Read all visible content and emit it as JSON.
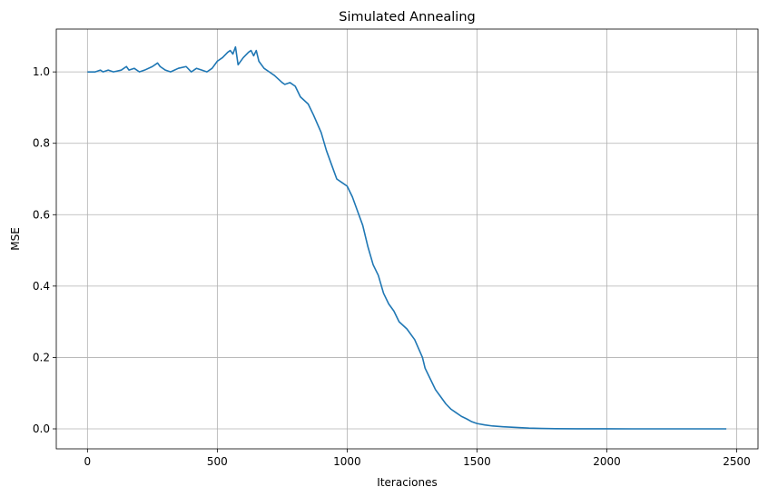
{
  "chart_data": {
    "type": "line",
    "title": "Simulated Annealing",
    "xlabel": "Iteraciones",
    "ylabel": "MSE",
    "xlim": [
      -120,
      2582
    ],
    "ylim": [
      -0.056,
      1.12
    ],
    "grid": true,
    "line_color": "#1f77b4",
    "grid_color": "#b0b0b0",
    "xticks": [
      0,
      500,
      1000,
      1500,
      2000,
      2500
    ],
    "xtick_labels": [
      "0",
      "500",
      "1000",
      "1500",
      "2000",
      "2500"
    ],
    "yticks": [
      0.0,
      0.2,
      0.4,
      0.6,
      0.8,
      1.0
    ],
    "ytick_labels": [
      "0.0",
      "0.2",
      "0.4",
      "0.6",
      "0.8",
      "1.0"
    ],
    "series": [
      {
        "x": [
          0,
          30,
          50,
          60,
          80,
          100,
          130,
          150,
          160,
          180,
          200,
          220,
          250,
          270,
          280,
          300,
          320,
          350,
          380,
          400,
          420,
          440,
          460,
          480,
          500,
          520,
          540,
          550,
          560,
          570,
          580,
          600,
          620,
          630,
          640,
          650,
          660,
          680,
          700,
          720,
          750,
          760,
          780,
          800,
          820,
          850,
          870,
          900,
          920,
          940,
          960,
          980,
          1000,
          1020,
          1040,
          1060,
          1080,
          1100,
          1120,
          1140,
          1160,
          1180,
          1200,
          1230,
          1260,
          1290,
          1300,
          1320,
          1340,
          1360,
          1380,
          1400,
          1420,
          1440,
          1460,
          1480,
          1500,
          1530,
          1560,
          1600,
          1650,
          1700,
          1750,
          1800,
          1900,
          2000,
          2100,
          2200,
          2300,
          2400,
          2460
        ],
        "y": [
          1.0,
          1.0,
          1.005,
          1.0,
          1.005,
          1.0,
          1.005,
          1.015,
          1.005,
          1.01,
          1.0,
          1.005,
          1.015,
          1.025,
          1.015,
          1.005,
          1.0,
          1.01,
          1.015,
          1.0,
          1.01,
          1.005,
          1.0,
          1.01,
          1.03,
          1.04,
          1.055,
          1.06,
          1.05,
          1.07,
          1.02,
          1.04,
          1.055,
          1.06,
          1.045,
          1.06,
          1.03,
          1.01,
          1.0,
          0.99,
          0.97,
          0.965,
          0.97,
          0.96,
          0.93,
          0.91,
          0.88,
          0.83,
          0.78,
          0.74,
          0.7,
          0.69,
          0.68,
          0.65,
          0.61,
          0.57,
          0.51,
          0.46,
          0.43,
          0.38,
          0.35,
          0.33,
          0.3,
          0.28,
          0.25,
          0.2,
          0.17,
          0.14,
          0.11,
          0.09,
          0.07,
          0.055,
          0.045,
          0.035,
          0.028,
          0.02,
          0.015,
          0.011,
          0.008,
          0.006,
          0.004,
          0.002,
          0.001,
          0.0005,
          0.0002,
          0.0001,
          0.0,
          0.0,
          0.0,
          0.0,
          0.0
        ]
      }
    ]
  }
}
